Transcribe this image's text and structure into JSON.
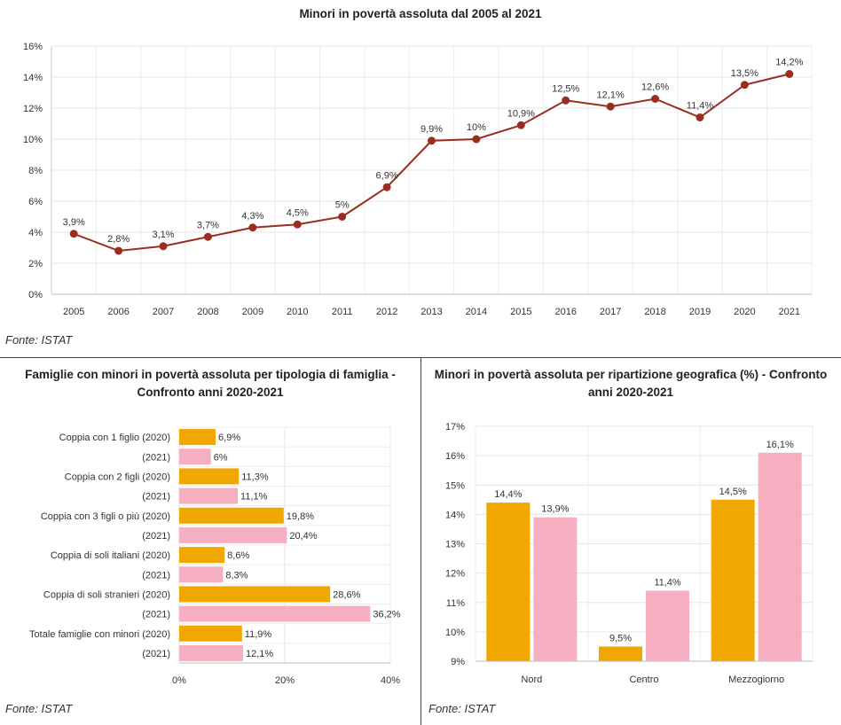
{
  "chart_data": [
    {
      "type": "line",
      "title": "Minori in povertà assoluta dal 2005 al 2021",
      "source": "Fonte: ISTAT",
      "x": [
        "2005",
        "2006",
        "2007",
        "2008",
        "2009",
        "2010",
        "2011",
        "2012",
        "2013",
        "2014",
        "2015",
        "2016",
        "2017",
        "2018",
        "2019",
        "2020",
        "2021"
      ],
      "values": [
        3.9,
        2.8,
        3.1,
        3.7,
        4.3,
        4.5,
        5.0,
        6.9,
        9.9,
        10.0,
        10.9,
        12.5,
        12.1,
        12.6,
        11.4,
        13.5,
        14.2
      ],
      "data_labels": [
        "3,9%",
        "2,8%",
        "3,1%",
        "3,7%",
        "4,3%",
        "4,5%",
        "5%",
        "6,9%",
        "9,9%",
        "10%",
        "10,9%",
        "12,5%",
        "12,1%",
        "12,6%",
        "11,4%",
        "13,5%",
        "14,2%"
      ],
      "ylim": [
        0,
        16
      ],
      "yticks": [
        0,
        2,
        4,
        6,
        8,
        10,
        12,
        14,
        16
      ],
      "ytick_labels": [
        "0%",
        "2%",
        "4%",
        "6%",
        "8%",
        "10%",
        "12%",
        "14%",
        "16%"
      ],
      "color": "#9b2d20",
      "grid": true
    },
    {
      "type": "bar",
      "orientation": "horizontal",
      "title": "Famiglie con minori in povertà assoluta per tipologia di famiglia - Confronto anni 2020-2021",
      "source": "Fonte: ISTAT",
      "categories": [
        "Coppia con 1 figlio (2020)",
        "(2021)",
        "Coppia con 2 figli (2020)",
        "(2021)",
        "Coppia con 3 figli o più (2020)",
        "(2021)",
        "Coppia di soli italiani (2020)",
        "(2021)",
        "Coppia di soli stranieri (2020)",
        "(2021)",
        "Totale famiglie con minori (2020)",
        "(2021)"
      ],
      "values": [
        6.9,
        6.0,
        11.3,
        11.1,
        19.8,
        20.4,
        8.6,
        8.3,
        28.6,
        36.2,
        11.9,
        12.1
      ],
      "data_labels": [
        "6,9%",
        "6%",
        "11,3%",
        "11,1%",
        "19,8%",
        "20,4%",
        "8,6%",
        "8,3%",
        "28,6%",
        "36,2%",
        "11,9%",
        "12,1%"
      ],
      "xlim": [
        0,
        40
      ],
      "xticks": [
        0,
        20,
        40
      ],
      "xtick_labels": [
        "0%",
        "20%",
        "40%"
      ],
      "colors": {
        "2020": "#f0a800",
        "2021": "#f5afc0"
      },
      "grid": true
    },
    {
      "type": "bar",
      "title": "Minori in povertà assoluta per ripartizione geografica (%) - Confronto anni 2020-2021",
      "source": "Fonte: ISTAT",
      "categories": [
        "Nord",
        "Centro",
        "Mezzogiorno"
      ],
      "series": [
        {
          "name": "2020",
          "values": [
            14.4,
            9.5,
            14.5
          ],
          "labels": [
            "14,4%",
            "9,5%",
            "14,5%"
          ],
          "color": "#f0a800"
        },
        {
          "name": "2021",
          "values": [
            13.9,
            11.4,
            16.1
          ],
          "labels": [
            "13,9%",
            "11,4%",
            "16,1%"
          ],
          "color": "#f5afc0"
        }
      ],
      "ylim": [
        9,
        17
      ],
      "yticks": [
        9,
        10,
        11,
        12,
        13,
        14,
        15,
        16,
        17
      ],
      "ytick_labels": [
        "9%",
        "10%",
        "11%",
        "12%",
        "13%",
        "14%",
        "15%",
        "16%",
        "17%"
      ],
      "grid": true
    }
  ]
}
